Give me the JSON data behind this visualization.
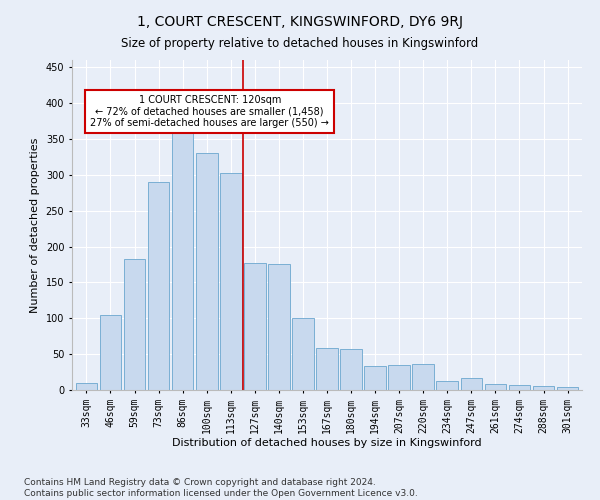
{
  "title": "1, COURT CRESCENT, KINGSWINFORD, DY6 9RJ",
  "subtitle": "Size of property relative to detached houses in Kingswinford",
  "xlabel": "Distribution of detached houses by size in Kingswinford",
  "ylabel": "Number of detached properties",
  "categories": [
    "33sqm",
    "46sqm",
    "59sqm",
    "73sqm",
    "86sqm",
    "100sqm",
    "113sqm",
    "127sqm",
    "140sqm",
    "153sqm",
    "167sqm",
    "180sqm",
    "194sqm",
    "207sqm",
    "220sqm",
    "234sqm",
    "247sqm",
    "261sqm",
    "274sqm",
    "288sqm",
    "301sqm"
  ],
  "values": [
    10,
    105,
    183,
    290,
    365,
    330,
    302,
    177,
    175,
    100,
    58,
    57,
    33,
    35,
    36,
    13,
    17,
    9,
    7,
    5,
    4
  ],
  "bar_color": "#c8d9ee",
  "bar_edge_color": "#7aafd4",
  "vline_color": "#cc0000",
  "annotation_text": "1 COURT CRESCENT: 120sqm\n← 72% of detached houses are smaller (1,458)\n27% of semi-detached houses are larger (550) →",
  "annotation_box_color": "#ffffff",
  "annotation_box_edge_color": "#cc0000",
  "ylim": [
    0,
    460
  ],
  "yticks": [
    0,
    50,
    100,
    150,
    200,
    250,
    300,
    350,
    400,
    450
  ],
  "footnote": "Contains HM Land Registry data © Crown copyright and database right 2024.\nContains public sector information licensed under the Open Government Licence v3.0.",
  "bg_color": "#e8eef8",
  "plot_bg_color": "#e8eef8",
  "title_fontsize": 10,
  "subtitle_fontsize": 8.5,
  "xlabel_fontsize": 8,
  "ylabel_fontsize": 8,
  "tick_fontsize": 7,
  "footnote_fontsize": 6.5
}
